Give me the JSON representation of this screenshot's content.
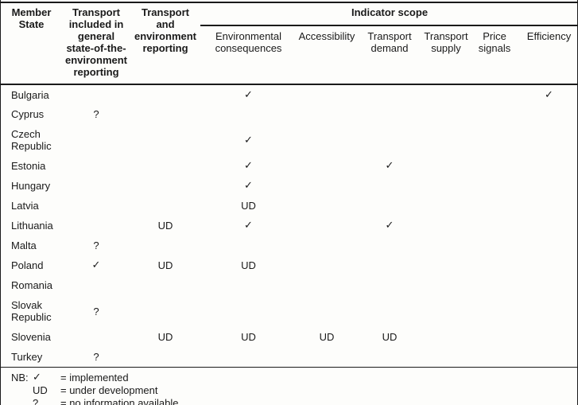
{
  "colors": {
    "text": "#1a1a1a",
    "border": "#000000",
    "background": "#fdfdfb"
  },
  "table": {
    "headers": {
      "member_state": "Member\nState",
      "soe_reporting": "Transport\nincluded in\ngeneral\nstate-of-the-\nenvironment\nreporting",
      "te_reporting": "Transport\nand\nenvironment\nreporting",
      "indicator_scope": "Indicator scope",
      "scope_columns": [
        "Environmental\nconsequences",
        "Accessibility",
        "Transport\ndemand",
        "Transport\nsupply",
        "Price\nsignals",
        "Efficiency"
      ]
    },
    "rows": [
      {
        "state": "Bulgaria",
        "tall": false,
        "cells": [
          "",
          "",
          "✓",
          "",
          "",
          "",
          "",
          "✓"
        ]
      },
      {
        "state": "Cyprus",
        "tall": false,
        "cells": [
          "?",
          "",
          "",
          "",
          "",
          "",
          "",
          ""
        ]
      },
      {
        "state": "Czech Republic",
        "tall": true,
        "cells": [
          "",
          "",
          "✓",
          "",
          "",
          "",
          "",
          ""
        ]
      },
      {
        "state": "Estonia",
        "tall": false,
        "cells": [
          "",
          "",
          "✓",
          "",
          "✓",
          "",
          "",
          ""
        ]
      },
      {
        "state": "Hungary",
        "tall": false,
        "cells": [
          "",
          "",
          "✓",
          "",
          "",
          "",
          "",
          ""
        ]
      },
      {
        "state": "Latvia",
        "tall": false,
        "cells": [
          "",
          "",
          "UD",
          "",
          "",
          "",
          "",
          ""
        ]
      },
      {
        "state": "Lithuania",
        "tall": false,
        "cells": [
          "",
          "UD",
          "✓",
          "",
          "✓",
          "",
          "",
          ""
        ]
      },
      {
        "state": "Malta",
        "tall": false,
        "cells": [
          "?",
          "",
          "",
          "",
          "",
          "",
          "",
          ""
        ]
      },
      {
        "state": "Poland",
        "tall": false,
        "cells": [
          "✓",
          "UD",
          "UD",
          "",
          "",
          "",
          "",
          ""
        ]
      },
      {
        "state": "Romania",
        "tall": false,
        "cells": [
          "",
          "",
          "",
          "",
          "",
          "",
          "",
          ""
        ]
      },
      {
        "state": "Slovak Republic",
        "tall": true,
        "cells": [
          "?",
          "",
          "",
          "",
          "",
          "",
          "",
          ""
        ]
      },
      {
        "state": "Slovenia",
        "tall": false,
        "cells": [
          "",
          "UD",
          "UD",
          "UD",
          "UD",
          "",
          "",
          ""
        ]
      },
      {
        "state": "Turkey",
        "tall": false,
        "cells": [
          "?",
          "",
          "",
          "",
          "",
          "",
          "",
          ""
        ]
      }
    ]
  },
  "legend": {
    "prefix": "NB:",
    "items": [
      {
        "symbol": "✓",
        "meaning": "= implemented"
      },
      {
        "symbol": "UD",
        "meaning": "= under development"
      },
      {
        "symbol": "?",
        "meaning": "= no information available"
      }
    ]
  }
}
